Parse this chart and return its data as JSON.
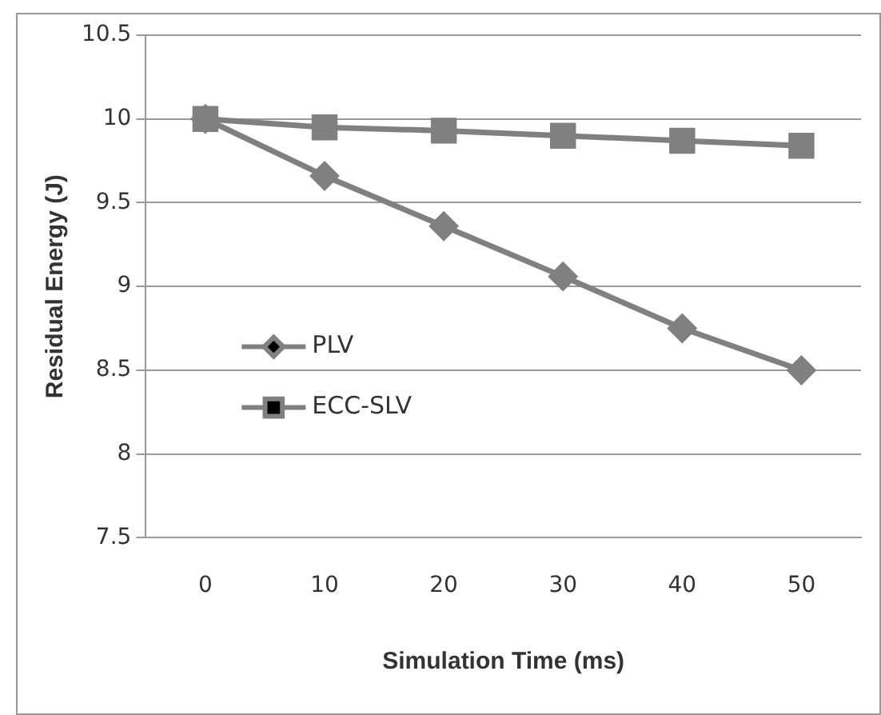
{
  "chart_data": {
    "type": "line",
    "xlabel": "Simulation Time (ms)",
    "ylabel": "Residual Energy (J)",
    "categories": [
      "0",
      "10",
      "20",
      "30",
      "40",
      "50"
    ],
    "series": [
      {
        "name": "PLV",
        "color": "#808080",
        "marker": "diamond",
        "values": [
          10,
          9.66,
          9.36,
          9.06,
          8.75,
          8.5
        ]
      },
      {
        "name": "ECC-SLV",
        "color": "#808080",
        "marker": "square",
        "values": [
          10,
          9.95,
          9.93,
          9.9,
          9.87,
          9.84
        ]
      }
    ],
    "ylim": [
      7.5,
      10.5
    ],
    "yticks": [
      7.5,
      8,
      8.5,
      9,
      9.5,
      10,
      10.5
    ],
    "grid": "y",
    "legend": "left"
  }
}
